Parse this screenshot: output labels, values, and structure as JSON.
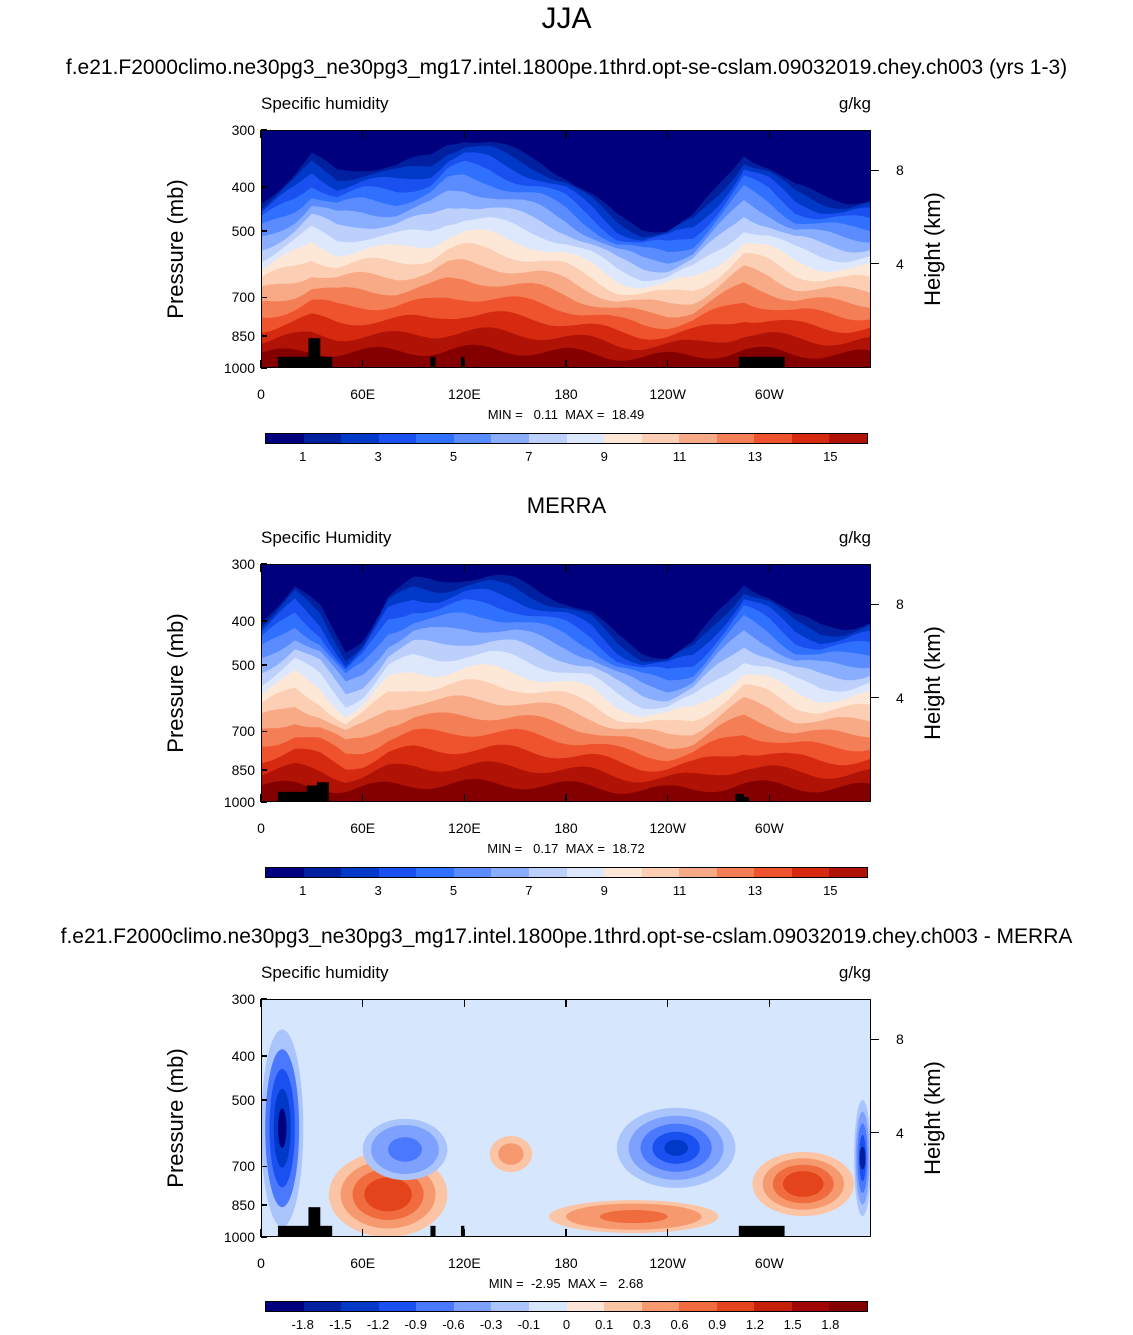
{
  "figure_title": "JJA",
  "panels": [
    {
      "id": "model",
      "title": "f.e21.F2000climo.ne30pg3_ne30pg3_mg17.intel.1800pe.1thrd.opt-se-cslam.09032019.chey.ch003 (yrs 1-3)",
      "left_string": "Specific humidity",
      "right_string": "g/kg",
      "ylabel": "Pressure (mb)",
      "ylabel_right": "Height (km)",
      "minmax": "MIN =   0.11  MAX =  18.49"
    },
    {
      "id": "obs",
      "title": "MERRA",
      "left_string": "Specific Humidity",
      "right_string": "g/kg",
      "ylabel": "Pressure (mb)",
      "ylabel_right": "Height (km)",
      "minmax": "MIN =   0.17  MAX =  18.72"
    },
    {
      "id": "diff",
      "title": "f.e21.F2000climo.ne30pg3_ne30pg3_mg17.intel.1800pe.1thrd.opt-se-cslam.09032019.chey.ch003 - MERRA",
      "left_string": "Specific humidity",
      "right_string": "g/kg",
      "ylabel": "Pressure (mb)",
      "ylabel_right": "Height (km)",
      "minmax": "MIN =  -2.95  MAX =   2.68"
    }
  ],
  "chart_data": [
    {
      "type": "heatmap",
      "subtype": "filled-contour pressure-longitude cross section",
      "title": "f.e21.F2000climo.ne30pg3_ne30pg3_mg17.intel.1800pe.1thrd.opt-se-cslam.09032019.chey.ch003 (yrs 1-3)",
      "variable": "Specific humidity",
      "units": "g/kg",
      "xlabel": "",
      "ylabel": "Pressure (mb)",
      "ylabel_right": "Height (km)",
      "x_ticks": [
        "0",
        "60E",
        "120E",
        "180",
        "120W",
        "60W"
      ],
      "x_tick_values": [
        0,
        60,
        120,
        180,
        240,
        300
      ],
      "xlim": [
        0,
        360
      ],
      "y_ticks": [
        300,
        400,
        500,
        700,
        850,
        1000
      ],
      "ylim": [
        1000,
        300
      ],
      "y_scale": "log",
      "y_right_ticks": [
        8,
        4
      ],
      "min": 0.11,
      "max": 18.49,
      "colorbar_labels": [
        "1",
        "3",
        "5",
        "7",
        "9",
        "11",
        "13",
        "15"
      ],
      "colorbar_levels": [
        0,
        1,
        2,
        3,
        4,
        5,
        6,
        7,
        8,
        9,
        10,
        11,
        12,
        13,
        14,
        15,
        16
      ],
      "moist_depth_profile": {
        "lon": [
          0,
          20,
          30,
          45,
          60,
          80,
          100,
          110,
          120,
          135,
          150,
          165,
          180,
          195,
          210,
          225,
          240,
          255,
          270,
          285,
          300,
          315,
          330,
          345,
          360
        ],
        "p_top": [
          510,
          450,
          410,
          440,
          430,
          430,
          410,
          380,
          370,
          380,
          400,
          420,
          450,
          500,
          560,
          590,
          590,
          560,
          480,
          400,
          430,
          480,
          500,
          510,
          510
        ]
      }
    },
    {
      "type": "heatmap",
      "subtype": "filled-contour pressure-longitude cross section",
      "title": "MERRA",
      "variable": "Specific Humidity",
      "units": "g/kg",
      "xlabel": "",
      "ylabel": "Pressure (mb)",
      "ylabel_right": "Height (km)",
      "x_ticks": [
        "0",
        "60E",
        "120E",
        "180",
        "120W",
        "60W"
      ],
      "x_tick_values": [
        0,
        60,
        120,
        180,
        240,
        300
      ],
      "xlim": [
        0,
        360
      ],
      "y_ticks": [
        300,
        400,
        500,
        700,
        850,
        1000
      ],
      "ylim": [
        1000,
        300
      ],
      "y_scale": "log",
      "y_right_ticks": [
        8,
        4
      ],
      "min": 0.17,
      "max": 18.72,
      "colorbar_labels": [
        "1",
        "3",
        "5",
        "7",
        "9",
        "11",
        "13",
        "15"
      ],
      "colorbar_levels": [
        0,
        1,
        2,
        3,
        4,
        5,
        6,
        7,
        8,
        9,
        10,
        11,
        12,
        13,
        14,
        15,
        16
      ],
      "moist_depth_profile": {
        "lon": [
          0,
          20,
          35,
          50,
          60,
          75,
          90,
          105,
          120,
          135,
          150,
          165,
          180,
          195,
          210,
          225,
          240,
          255,
          270,
          285,
          300,
          315,
          330,
          345,
          360
        ],
        "p_top": [
          470,
          400,
          450,
          560,
          520,
          420,
          390,
          390,
          380,
          380,
          390,
          410,
          430,
          460,
          520,
          560,
          570,
          540,
          460,
          390,
          420,
          470,
          490,
          490,
          480
        ]
      }
    },
    {
      "type": "heatmap",
      "subtype": "filled-contour pressure-longitude cross section (difference)",
      "title": "f.e21.F2000climo.ne30pg3_ne30pg3_mg17.intel.1800pe.1thrd.opt-se-cslam.09032019.chey.ch003 - MERRA",
      "variable": "Specific humidity",
      "units": "g/kg",
      "xlabel": "",
      "ylabel": "Pressure (mb)",
      "ylabel_right": "Height (km)",
      "x_ticks": [
        "0",
        "60E",
        "120E",
        "180",
        "120W",
        "60W"
      ],
      "x_tick_values": [
        0,
        60,
        120,
        180,
        240,
        300
      ],
      "xlim": [
        0,
        360
      ],
      "y_ticks": [
        300,
        400,
        500,
        700,
        850,
        1000
      ],
      "ylim": [
        1000,
        300
      ],
      "y_scale": "log",
      "y_right_ticks": [
        8,
        4
      ],
      "min": -2.95,
      "max": 2.68,
      "colorbar_labels": [
        "-1.8",
        "-1.5",
        "-1.2",
        "-0.9",
        "-0.6",
        "-0.3",
        "-0.1",
        "0",
        "0.1",
        "0.3",
        "0.6",
        "0.9",
        "1.2",
        "1.5",
        "1.8"
      ],
      "features": [
        {
          "lon_range": [
            0,
            25
          ],
          "p_range": [
            350,
            950
          ],
          "value": -1.8
        },
        {
          "lon_range": [
            40,
            110
          ],
          "p_range": [
            650,
            1000
          ],
          "value": 1.2
        },
        {
          "lon_range": [
            60,
            110
          ],
          "p_range": [
            550,
            750
          ],
          "value": -0.9
        },
        {
          "lon_range": [
            135,
            160
          ],
          "p_range": [
            600,
            720
          ],
          "value": 0.6
        },
        {
          "lon_range": [
            170,
            270
          ],
          "p_range": [
            830,
            980
          ],
          "value": 0.9
        },
        {
          "lon_range": [
            210,
            280
          ],
          "p_range": [
            520,
            780
          ],
          "value": -1.2
        },
        {
          "lon_range": [
            290,
            350
          ],
          "p_range": [
            650,
            900
          ],
          "value": 1.2
        },
        {
          "lon_range": [
            350,
            360
          ],
          "p_range": [
            500,
            900
          ],
          "value": -1.5
        }
      ]
    }
  ],
  "colors": {
    "abs_scale": [
      "#00007f",
      "#0020a0",
      "#0038c8",
      "#1a50f0",
      "#3070ff",
      "#5a8cff",
      "#8aaeff",
      "#bcd0fb",
      "#dde8fc",
      "#fde8d8",
      "#fccfb5",
      "#f8a985",
      "#f47e55",
      "#ef532d",
      "#d62a10",
      "#b01206",
      "#840000"
    ],
    "diff_scale": [
      "#00007f",
      "#0020a0",
      "#0038c8",
      "#1a50f0",
      "#4a78ff",
      "#7ea0ff",
      "#aac4fc",
      "#d6e6fd",
      "#fde6d8",
      "#fbc4a4",
      "#f7996e",
      "#f06c3f",
      "#e4441b",
      "#c4200a",
      "#a00606",
      "#840000"
    ],
    "topography": "#000000"
  }
}
